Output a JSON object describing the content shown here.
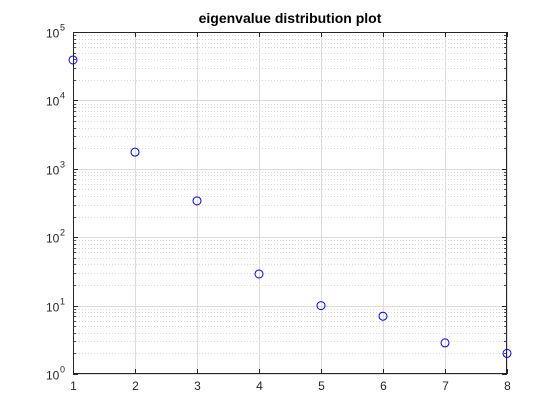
{
  "chart_data": {
    "type": "scatter",
    "title": "eigenvalue distribution plot",
    "xlabel": "",
    "ylabel": "",
    "x": [
      1,
      2,
      3,
      4,
      5,
      6,
      7,
      8
    ],
    "y": [
      39000,
      1750,
      340,
      29,
      10,
      7,
      2.85,
      2
    ],
    "xlim": [
      1,
      8
    ],
    "ylim": [
      1,
      100000
    ],
    "yscale": "log",
    "xticks": [
      "1",
      "2",
      "3",
      "4",
      "5",
      "6",
      "7",
      "8"
    ],
    "yticks": [
      {
        "base": "10",
        "exp": "0"
      },
      {
        "base": "10",
        "exp": "1"
      },
      {
        "base": "10",
        "exp": "2"
      },
      {
        "base": "10",
        "exp": "3"
      },
      {
        "base": "10",
        "exp": "4"
      },
      {
        "base": "10",
        "exp": "5"
      }
    ],
    "grid": true,
    "minor_grid": true,
    "marker": "circle-open",
    "marker_color": "#0000ff",
    "box": true
  }
}
